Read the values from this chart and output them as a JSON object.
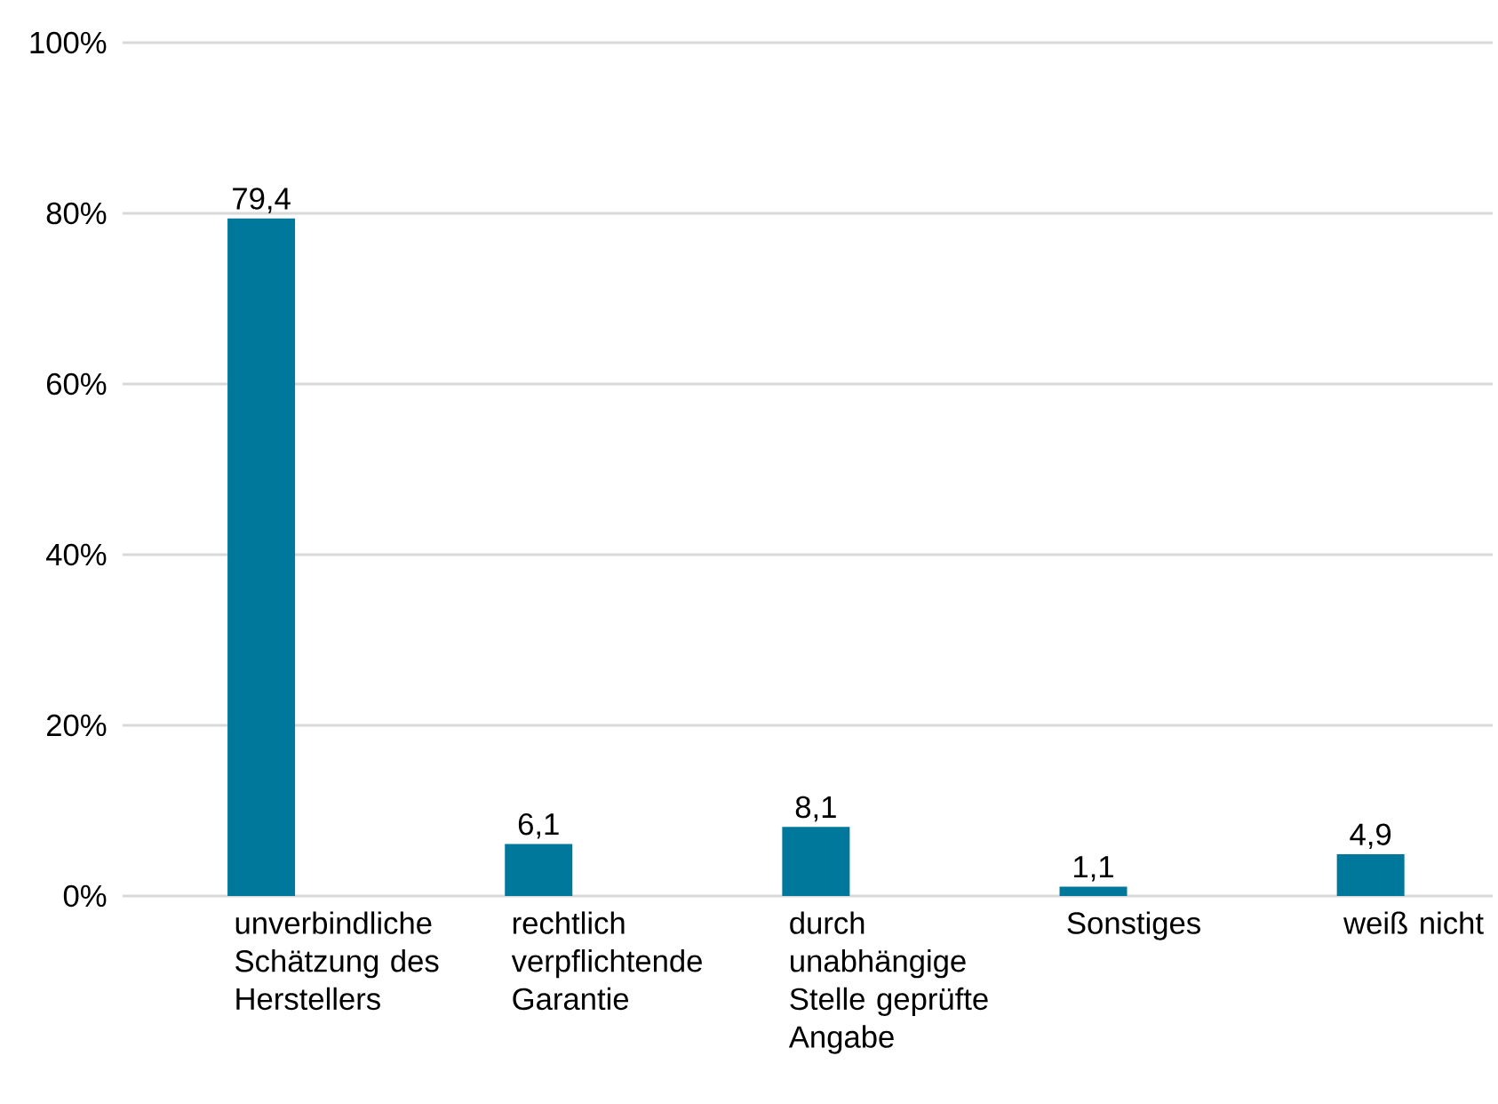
{
  "chart_data": {
    "type": "bar",
    "categories": [
      "unverbindliche Schätzung des Herstellers",
      "rechtlich verpflichtende Garantie",
      "durch unabhängige Stelle geprüfte Angabe",
      "Sonstiges",
      "weiß nicht"
    ],
    "values": [
      79.4,
      6.1,
      8.1,
      1.1,
      4.9
    ],
    "value_labels": [
      "79,4",
      "6,1",
      "8,1",
      "1,1",
      "4,9"
    ],
    "color": "#00789c",
    "ylim": [
      0,
      100
    ],
    "yticks": [
      {
        "value": 0,
        "label": "0%"
      },
      {
        "value": 20,
        "label": "20%"
      },
      {
        "value": 40,
        "label": "40%"
      },
      {
        "value": 60,
        "label": "60%"
      },
      {
        "value": 80,
        "label": "80%"
      },
      {
        "value": 100,
        "label": "100%"
      }
    ],
    "grid": "y"
  }
}
